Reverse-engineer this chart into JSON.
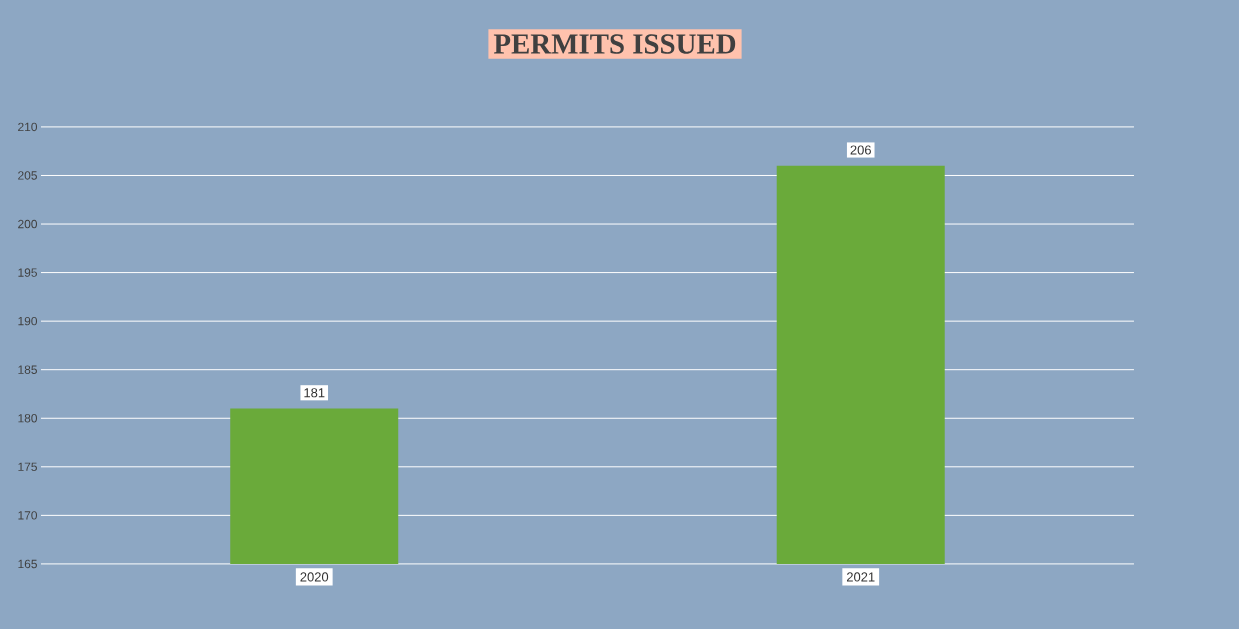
{
  "chart_data": {
    "type": "bar",
    "title": "PERMITS ISSUED",
    "categories": [
      "2020",
      "2021"
    ],
    "values": [
      181,
      206
    ],
    "color": "#6aaa3a",
    "ylim": [
      165,
      210
    ],
    "yticks": [
      165,
      170,
      175,
      180,
      185,
      190,
      195,
      200,
      205,
      210
    ],
    "grid": "y",
    "data_labels": true
  }
}
